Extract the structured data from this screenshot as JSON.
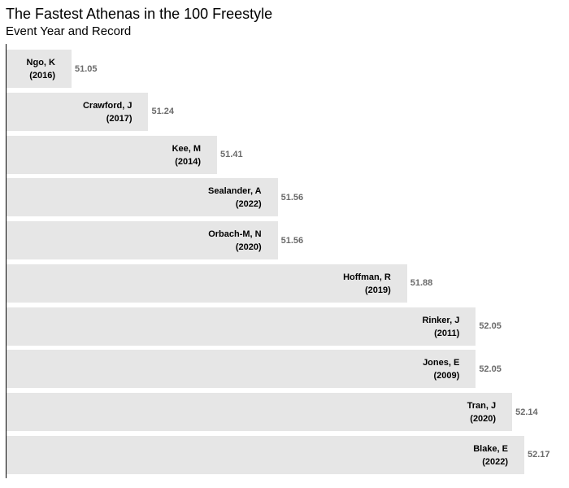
{
  "chart_data": {
    "type": "bar",
    "orientation": "horizontal",
    "title": "The Fastest Athenas in the 100 Freestyle",
    "subtitle": "Event Year and Record",
    "xlabel": "",
    "ylabel": "",
    "grid": false,
    "bar_color": "#e6e6e6",
    "value_color": "#6b6b6b",
    "bars": [
      {
        "name": "Ngo, K",
        "year": "(2016)",
        "value": 51.05,
        "value_label": "51.05"
      },
      {
        "name": "Crawford, J",
        "year": "(2017)",
        "value": 51.24,
        "value_label": "51.24"
      },
      {
        "name": "Kee, M",
        "year": "(2014)",
        "value": 51.41,
        "value_label": "51.41"
      },
      {
        "name": "Sealander, A",
        "year": "(2022)",
        "value": 51.56,
        "value_label": "51.56"
      },
      {
        "name": "Orbach-M, N",
        "year": "(2020)",
        "value": 51.56,
        "value_label": "51.56"
      },
      {
        "name": "Hoffman, R",
        "year": "(2019)",
        "value": 51.88,
        "value_label": "51.88"
      },
      {
        "name": "Rinker, J",
        "year": "(2011)",
        "value": 52.05,
        "value_label": "52.05"
      },
      {
        "name": "Jones, E",
        "year": "(2009)",
        "value": 52.05,
        "value_label": "52.05"
      },
      {
        "name": "Tran, J",
        "year": "(2020)",
        "value": 52.14,
        "value_label": "52.14"
      },
      {
        "name": "Blake, E",
        "year": "(2022)",
        "value": 52.17,
        "value_label": "52.17"
      }
    ]
  }
}
